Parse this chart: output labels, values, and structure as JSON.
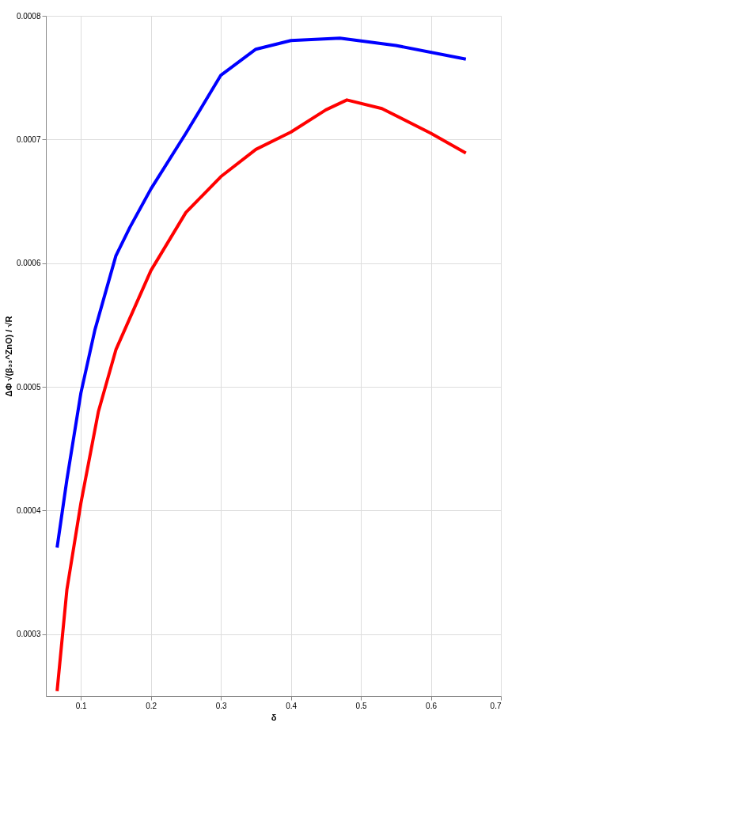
{
  "chart_data": {
    "type": "line",
    "xlabel": "δ",
    "ylabel": "ΔΦ √(β₃₃^ZnO) / √R",
    "xlim": [
      0.05,
      0.7
    ],
    "xticks": [
      0.1,
      0.2,
      0.3,
      0.4,
      0.5,
      0.6,
      0.7
    ],
    "ylim": [
      0.00025,
      0.0008
    ],
    "yticks": [
      0.0003,
      0.0004,
      0.0005,
      0.0006,
      0.0007,
      0.0008
    ],
    "grid": true,
    "line_style": "solid",
    "series": [
      {
        "color": "#0000ff",
        "x": [
          0.066,
          0.08,
          0.1,
          0.12,
          0.15,
          0.17,
          0.2,
          0.25,
          0.3,
          0.35,
          0.4,
          0.47,
          0.55,
          0.65
        ],
        "values": [
          0.00037,
          0.000425,
          0.000495,
          0.000546,
          0.000606,
          0.000629,
          0.00066,
          0.000705,
          0.000752,
          0.000773,
          0.00078,
          0.000782,
          0.000776,
          0.000765
        ]
      },
      {
        "color": "#ff0000",
        "x": [
          0.066,
          0.08,
          0.1,
          0.125,
          0.15,
          0.2,
          0.25,
          0.3,
          0.35,
          0.4,
          0.45,
          0.48,
          0.53,
          0.6,
          0.65
        ],
        "values": [
          0.000254,
          0.000336,
          0.000406,
          0.00048,
          0.00053,
          0.000594,
          0.000641,
          0.00067,
          0.000692,
          0.000706,
          0.000724,
          0.000732,
          0.000725,
          0.000705,
          0.000689
        ]
      }
    ]
  }
}
